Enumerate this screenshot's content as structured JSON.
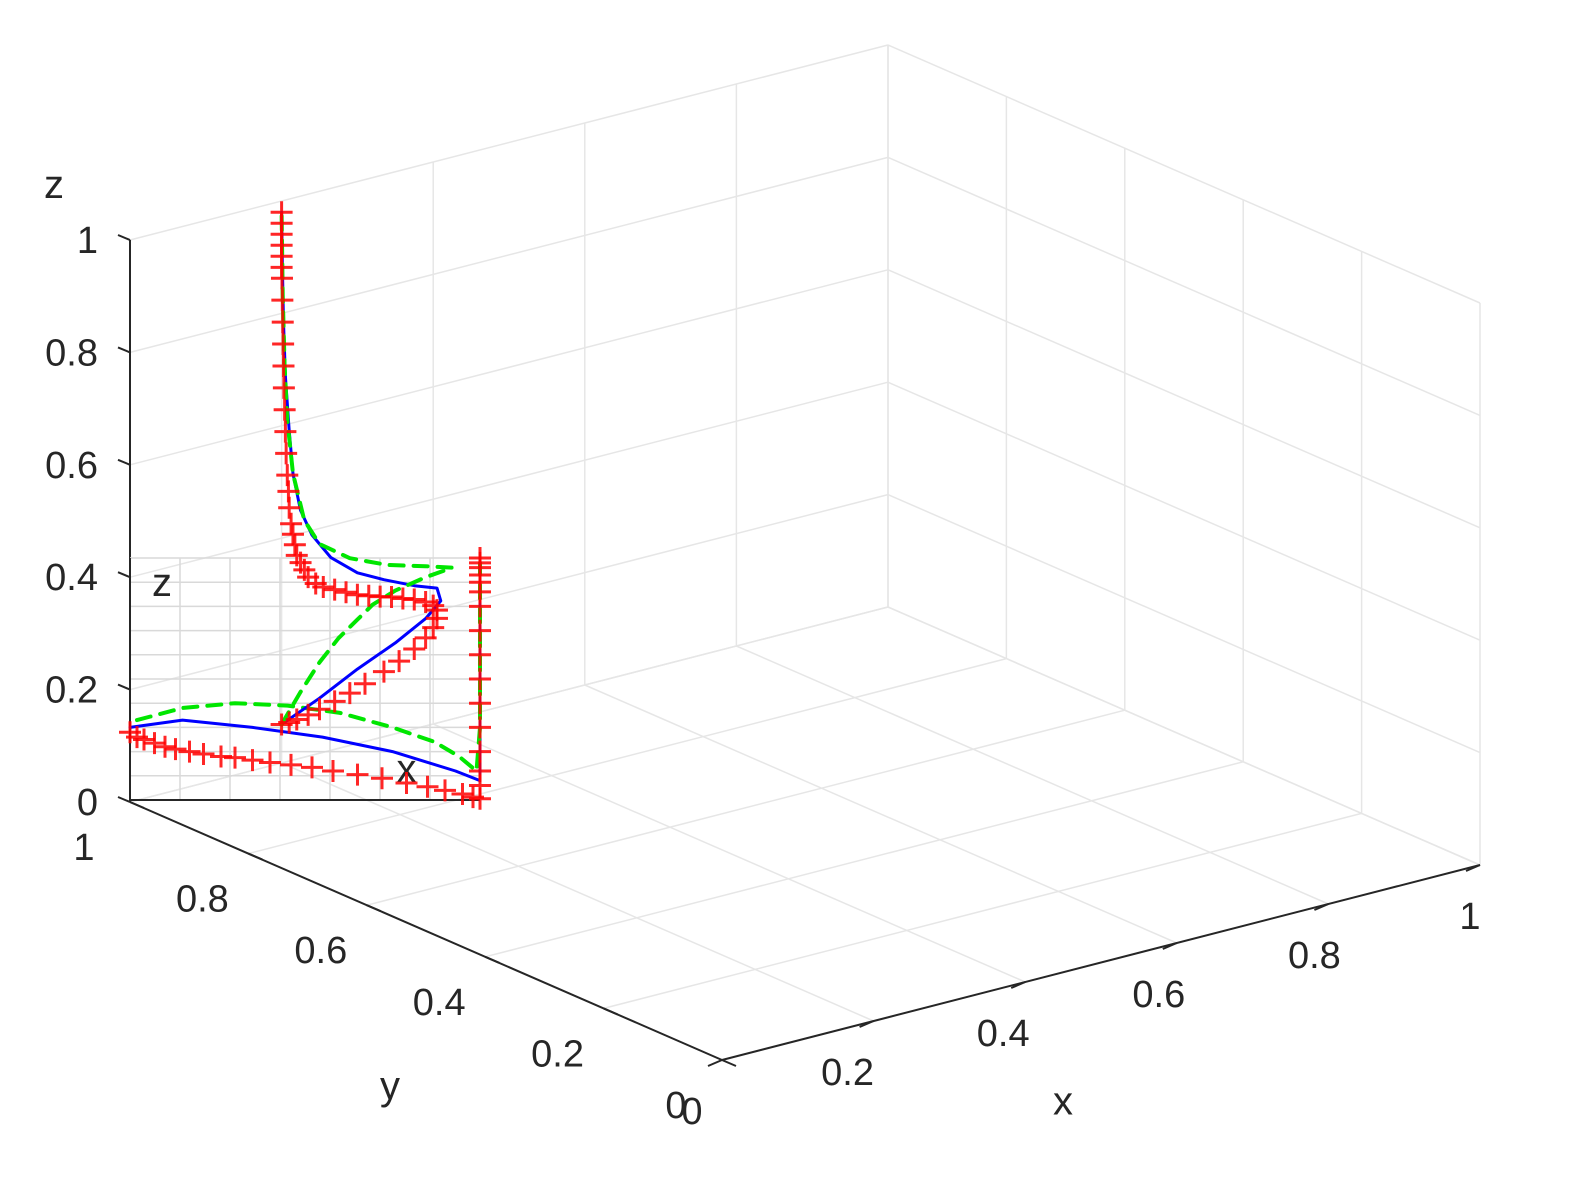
{
  "chart_data": {
    "type": "line",
    "view": "3d",
    "grid": true,
    "xlabel": "x",
    "ylabel": "y",
    "zlabel": "z",
    "xlim": [
      0,
      1
    ],
    "ylim": [
      0,
      1
    ],
    "zlim": [
      0,
      1
    ],
    "xticks": [
      "0",
      "0.2",
      "0.4",
      "0.6",
      "0.8",
      "1"
    ],
    "yticks": [
      "0",
      "0.2",
      "0.4",
      "0.6",
      "0.8",
      "1"
    ],
    "zticks": [
      "0",
      "0.2",
      "0.4",
      "0.6",
      "0.8",
      "1"
    ],
    "series_colors": {
      "solid": "#0000ff",
      "dashed": "#00e600",
      "markers": "#ff0000"
    },
    "series": [
      {
        "style": "solid",
        "points": [
          [
            0.0,
            0.0,
            0.07
          ],
          [
            0.1,
            0.0,
            0.1
          ],
          [
            0.2,
            0.0,
            0.135
          ],
          [
            0.3,
            0.0,
            0.165
          ],
          [
            0.38,
            0.0,
            0.195
          ],
          [
            0.42,
            0.0,
            0.22
          ],
          [
            0.41,
            0.0,
            0.245
          ],
          [
            0.35,
            0.0,
            0.26
          ],
          [
            0.27,
            0.0,
            0.285
          ],
          [
            0.2,
            0.0,
            0.31
          ],
          [
            0.13,
            0.0,
            0.35
          ],
          [
            0.08,
            0.0,
            0.4
          ],
          [
            0.05,
            0.0,
            0.45
          ],
          [
            0.03,
            0.0,
            0.52
          ],
          [
            0.02,
            0.0,
            0.6
          ],
          [
            0.01,
            0.0,
            0.7
          ],
          [
            0.005,
            0.0,
            0.8
          ],
          [
            0.002,
            0.0,
            0.9
          ],
          [
            0.0,
            0.0,
            1.0
          ]
        ]
      },
      {
        "style": "dashed",
        "points": [
          [
            0.0,
            0.0,
            0.07
          ],
          [
            0.05,
            0.0,
            0.12
          ],
          [
            0.1,
            0.0,
            0.165
          ],
          [
            0.15,
            0.0,
            0.2
          ],
          [
            0.2,
            0.0,
            0.225
          ],
          [
            0.24,
            0.0,
            0.245
          ],
          [
            0.3,
            0.0,
            0.26
          ],
          [
            0.38,
            0.0,
            0.27
          ],
          [
            0.45,
            0.0,
            0.275
          ],
          [
            0.38,
            0.0,
            0.29
          ],
          [
            0.28,
            0.0,
            0.31
          ],
          [
            0.18,
            0.0,
            0.34
          ],
          [
            0.1,
            0.0,
            0.38
          ],
          [
            0.06,
            0.0,
            0.43
          ],
          [
            0.03,
            0.0,
            0.52
          ],
          [
            0.015,
            0.0,
            0.62
          ],
          [
            0.008,
            0.0,
            0.72
          ],
          [
            0.003,
            0.0,
            0.85
          ],
          [
            0.0,
            0.0,
            1.0
          ]
        ]
      },
      {
        "style": "markers",
        "marker": "+",
        "points": [
          [
            0.0,
            0.0,
            0.07
          ],
          [
            0.02,
            0.0,
            0.07
          ],
          [
            0.04,
            0.0,
            0.072
          ],
          [
            0.07,
            0.0,
            0.075
          ],
          [
            0.1,
            0.0,
            0.08
          ],
          [
            0.14,
            0.0,
            0.087
          ],
          [
            0.18,
            0.0,
            0.095
          ],
          [
            0.22,
            0.0,
            0.105
          ],
          [
            0.27,
            0.0,
            0.118
          ],
          [
            0.31,
            0.0,
            0.13
          ],
          [
            0.35,
            0.0,
            0.145
          ],
          [
            0.38,
            0.0,
            0.16
          ],
          [
            0.4,
            0.0,
            0.175
          ],
          [
            0.41,
            0.0,
            0.19
          ],
          [
            0.41,
            0.0,
            0.205
          ],
          [
            0.4,
            0.0,
            0.215
          ],
          [
            0.38,
            0.0,
            0.225
          ],
          [
            0.35,
            0.0,
            0.235
          ],
          [
            0.32,
            0.0,
            0.242
          ],
          [
            0.29,
            0.0,
            0.25
          ],
          [
            0.26,
            0.0,
            0.256
          ],
          [
            0.23,
            0.0,
            0.263
          ],
          [
            0.2,
            0.0,
            0.27
          ],
          [
            0.17,
            0.0,
            0.28
          ],
          [
            0.14,
            0.0,
            0.29
          ],
          [
            0.11,
            0.0,
            0.3
          ],
          [
            0.09,
            0.0,
            0.31
          ],
          [
            0.07,
            0.0,
            0.325
          ],
          [
            0.06,
            0.0,
            0.34
          ],
          [
            0.05,
            0.0,
            0.355
          ],
          [
            0.04,
            0.0,
            0.37
          ],
          [
            0.035,
            0.0,
            0.39
          ],
          [
            0.03,
            0.0,
            0.41
          ],
          [
            0.025,
            0.0,
            0.43
          ],
          [
            0.02,
            0.0,
            0.46
          ],
          [
            0.018,
            0.0,
            0.49
          ],
          [
            0.015,
            0.0,
            0.52
          ],
          [
            0.012,
            0.0,
            0.56
          ],
          [
            0.01,
            0.0,
            0.6
          ],
          [
            0.008,
            0.0,
            0.64
          ],
          [
            0.006,
            0.0,
            0.68
          ],
          [
            0.005,
            0.0,
            0.72
          ],
          [
            0.004,
            0.0,
            0.76
          ],
          [
            0.003,
            0.0,
            0.8
          ],
          [
            0.002,
            0.0,
            0.84
          ],
          [
            0.001,
            0.0,
            0.88
          ],
          [
            0.0,
            0.0,
            0.9
          ],
          [
            0.0,
            0.0,
            0.92
          ],
          [
            0.0,
            0.0,
            0.94
          ],
          [
            0.0,
            0.0,
            0.96
          ],
          [
            0.0,
            0.0,
            0.98
          ],
          [
            0.0,
            0.0,
            1.0
          ]
        ]
      }
    ],
    "inset": {
      "axis_labels": [
        "z",
        "x"
      ],
      "view": "x-z projection",
      "series": [
        {
          "style": "solid",
          "points": [
            [
              0.0,
              0.0,
              0.3
            ],
            [
              0.15,
              0.0,
              0.33
            ],
            [
              0.35,
              0.0,
              0.3
            ],
            [
              0.55,
              0.0,
              0.26
            ],
            [
              0.75,
              0.0,
              0.2
            ],
            [
              0.93,
              0.0,
              0.12
            ],
            [
              1.0,
              0.0,
              0.08
            ],
            [
              1.0,
              0.0,
              0.2
            ],
            [
              1.0,
              0.0,
              0.4
            ],
            [
              1.0,
              0.0,
              0.6
            ],
            [
              1.0,
              0.0,
              0.8
            ],
            [
              1.0,
              0.0,
              0.98
            ]
          ]
        },
        {
          "style": "dashed",
          "points": [
            [
              0.02,
              0.0,
              0.33
            ],
            [
              0.15,
              0.0,
              0.38
            ],
            [
              0.3,
              0.0,
              0.4
            ],
            [
              0.45,
              0.0,
              0.39
            ],
            [
              0.6,
              0.0,
              0.36
            ],
            [
              0.75,
              0.0,
              0.3
            ],
            [
              0.87,
              0.0,
              0.24
            ],
            [
              0.94,
              0.0,
              0.18
            ],
            [
              0.99,
              0.0,
              0.12
            ],
            [
              1.0,
              0.0,
              0.3
            ],
            [
              1.0,
              0.0,
              0.6
            ],
            [
              1.0,
              0.0,
              0.98
            ]
          ]
        },
        {
          "style": "markers",
          "marker": "+",
          "points": [
            [
              0.0,
              0.0,
              0.28
            ],
            [
              0.02,
              0.0,
              0.26
            ],
            [
              0.04,
              0.0,
              0.25
            ],
            [
              0.07,
              0.0,
              0.235
            ],
            [
              0.1,
              0.0,
              0.22
            ],
            [
              0.13,
              0.0,
              0.21
            ],
            [
              0.17,
              0.0,
              0.2
            ],
            [
              0.21,
              0.0,
              0.19
            ],
            [
              0.26,
              0.0,
              0.18
            ],
            [
              0.3,
              0.0,
              0.175
            ],
            [
              0.35,
              0.0,
              0.165
            ],
            [
              0.4,
              0.0,
              0.155
            ],
            [
              0.46,
              0.0,
              0.145
            ],
            [
              0.52,
              0.0,
              0.135
            ],
            [
              0.58,
              0.0,
              0.12
            ],
            [
              0.65,
              0.0,
              0.105
            ],
            [
              0.72,
              0.0,
              0.09
            ],
            [
              0.79,
              0.0,
              0.07
            ],
            [
              0.85,
              0.0,
              0.055
            ],
            [
              0.9,
              0.0,
              0.04
            ],
            [
              0.95,
              0.0,
              0.025
            ],
            [
              0.98,
              0.0,
              0.012
            ],
            [
              1.0,
              0.0,
              0.005
            ],
            [
              1.0,
              0.0,
              0.06
            ],
            [
              1.0,
              0.0,
              0.12
            ],
            [
              1.0,
              0.0,
              0.2
            ],
            [
              1.0,
              0.0,
              0.3
            ],
            [
              1.0,
              0.0,
              0.4
            ],
            [
              1.0,
              0.0,
              0.5
            ],
            [
              1.0,
              0.0,
              0.6
            ],
            [
              1.0,
              0.0,
              0.7
            ],
            [
              1.0,
              0.0,
              0.8
            ],
            [
              1.0,
              0.0,
              0.86
            ],
            [
              1.0,
              0.0,
              0.9
            ],
            [
              1.0,
              0.0,
              0.93
            ],
            [
              1.0,
              0.0,
              0.96
            ],
            [
              1.0,
              0.0,
              0.98
            ],
            [
              1.0,
              0.0,
              1.0
            ]
          ]
        }
      ]
    }
  }
}
